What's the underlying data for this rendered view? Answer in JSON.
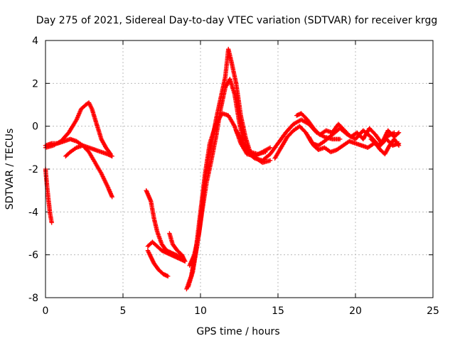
{
  "chart_data": {
    "type": "scatter",
    "title": "Day 275 of 2021, Sidereal Day-to-day VTEC variation (SDTVAR) for receiver krgg",
    "xlabel": "GPS time / hours",
    "ylabel": "SDTVAR / TECUs",
    "xlim": [
      0,
      25
    ],
    "ylim": [
      -8,
      4
    ],
    "xticks": [
      0,
      5,
      10,
      15,
      20,
      25
    ],
    "yticks": [
      -8,
      -6,
      -4,
      -2,
      0,
      2,
      4
    ],
    "grid": true,
    "marker": "plus",
    "series_color": "#ff0000",
    "tracks": [
      {
        "name": "track-1",
        "x": [
          0.0,
          0.5,
          1.0,
          1.5,
          2.0,
          2.3,
          2.6,
          2.8,
          3.0,
          3.3,
          3.6,
          3.9,
          4.2
        ],
        "y": [
          -1.0,
          -0.9,
          -0.7,
          -0.3,
          0.3,
          0.8,
          1.0,
          1.1,
          0.8,
          0.1,
          -0.6,
          -1.0,
          -1.3
        ]
      },
      {
        "name": "track-2",
        "x": [
          0.0,
          0.4,
          0.8,
          1.2,
          1.6,
          2.0,
          2.4,
          2.8,
          3.2,
          3.6,
          4.0,
          4.3
        ],
        "y": [
          -0.9,
          -0.8,
          -0.8,
          -0.7,
          -0.6,
          -0.7,
          -0.9,
          -1.2,
          -1.7,
          -2.2,
          -2.8,
          -3.3
        ]
      },
      {
        "name": "track-3",
        "x": [
          0.0,
          0.1,
          0.2,
          0.3,
          0.4
        ],
        "y": [
          -2.0,
          -2.8,
          -3.5,
          -4.1,
          -4.5
        ]
      },
      {
        "name": "track-4",
        "x": [
          1.3,
          1.6,
          2.0,
          2.4,
          2.8,
          3.2,
          3.6,
          4.0,
          4.3
        ],
        "y": [
          -1.4,
          -1.2,
          -1.0,
          -0.9,
          -1.0,
          -1.1,
          -1.2,
          -1.3,
          -1.4
        ]
      },
      {
        "name": "track-5",
        "x": [
          6.5,
          6.8,
          7.0,
          7.2,
          7.5,
          7.8,
          8.1,
          8.4,
          8.7
        ],
        "y": [
          -3.0,
          -3.5,
          -4.3,
          -4.9,
          -5.5,
          -5.8,
          -5.9,
          -6.0,
          -6.1
        ]
      },
      {
        "name": "track-6",
        "x": [
          6.6,
          6.9,
          7.2,
          7.5,
          7.8,
          8.1,
          8.4,
          8.7,
          9.0
        ],
        "y": [
          -5.6,
          -5.4,
          -5.6,
          -5.8,
          -5.9,
          -6.0,
          -6.1,
          -6.2,
          -6.3
        ]
      },
      {
        "name": "track-7",
        "x": [
          6.6,
          6.8,
          7.0,
          7.3,
          7.6,
          7.9
        ],
        "y": [
          -5.8,
          -6.1,
          -6.4,
          -6.7,
          -6.9,
          -7.0
        ]
      },
      {
        "name": "track-8",
        "x": [
          8.0,
          8.2,
          8.5,
          8.8,
          9.0
        ],
        "y": [
          -5.0,
          -5.5,
          -5.8,
          -6.0,
          -6.3
        ]
      },
      {
        "name": "track-9",
        "x": [
          9.3,
          9.6,
          9.9,
          10.1,
          10.3,
          10.5,
          10.8,
          11.0,
          11.3,
          11.6,
          11.8,
          12.0,
          12.3,
          12.6,
          12.9,
          13.2,
          13.6,
          14.0,
          14.5
        ],
        "y": [
          -6.5,
          -6.0,
          -5.0,
          -3.8,
          -2.5,
          -1.5,
          -0.5,
          0.3,
          1.3,
          2.3,
          3.6,
          3.0,
          2.0,
          0.5,
          -0.5,
          -1.2,
          -1.5,
          -1.7,
          -1.6
        ]
      },
      {
        "name": "track-10",
        "x": [
          9.1,
          9.4,
          9.7,
          10.0,
          10.3,
          10.6,
          11.0,
          11.4,
          11.8,
          12.2,
          12.6,
          13.0,
          13.5,
          14.0,
          14.5
        ],
        "y": [
          -7.6,
          -7.0,
          -5.8,
          -4.0,
          -2.2,
          -0.8,
          0.1,
          0.6,
          0.5,
          0.0,
          -0.8,
          -1.3,
          -1.4,
          -1.2,
          -1.0
        ]
      },
      {
        "name": "track-11",
        "x": [
          9.2,
          9.5,
          9.8,
          10.1,
          10.4,
          10.7,
          11.0,
          11.3,
          11.6,
          11.9,
          12.2,
          12.5,
          12.8,
          13.2,
          13.7,
          14.2
        ],
        "y": [
          -7.5,
          -6.8,
          -5.5,
          -4.0,
          -2.6,
          -1.6,
          -0.5,
          0.8,
          1.8,
          2.2,
          1.5,
          0.2,
          -0.8,
          -1.2,
          -1.3,
          -1.2
        ]
      },
      {
        "name": "track-12",
        "x": [
          12.3,
          12.6,
          13.0,
          13.5,
          14.0,
          14.5,
          15.0,
          15.5,
          16.0,
          16.5,
          17.0,
          17.5,
          18.0,
          18.5,
          19.0
        ],
        "y": [
          -0.2,
          -0.6,
          -1.2,
          -1.5,
          -1.6,
          -1.3,
          -0.8,
          -0.3,
          0.1,
          0.3,
          0.1,
          -0.3,
          -0.5,
          -0.6,
          -0.6
        ]
      },
      {
        "name": "track-13",
        "x": [
          14.8,
          15.2,
          15.6,
          16.0,
          16.4,
          16.8,
          17.2,
          17.6,
          18.0,
          18.5,
          19.0,
          19.5,
          20.0,
          20.5,
          21.0,
          21.5,
          22.0,
          22.5
        ],
        "y": [
          -1.5,
          -1.0,
          -0.5,
          -0.2,
          0.0,
          -0.3,
          -0.8,
          -0.9,
          -0.7,
          -0.4,
          -0.1,
          -0.4,
          -0.6,
          -0.2,
          -0.5,
          -0.9,
          -0.5,
          -0.3
        ]
      },
      {
        "name": "track-14",
        "x": [
          17.0,
          17.3,
          17.6,
          18.0,
          18.4,
          18.8,
          19.2,
          19.6,
          20.0,
          20.4,
          20.8,
          21.2,
          21.6,
          22.0,
          22.4,
          22.8
        ],
        "y": [
          -0.5,
          -0.9,
          -1.1,
          -1.0,
          -1.2,
          -1.1,
          -0.9,
          -0.7,
          -0.8,
          -0.9,
          -1.0,
          -0.8,
          -0.9,
          -0.6,
          -0.9,
          -0.8
        ]
      },
      {
        "name": "track-15",
        "x": [
          16.2,
          16.5,
          16.9,
          17.3,
          17.7,
          18.1,
          18.5,
          18.9,
          19.3,
          19.7,
          20.1,
          20.5,
          20.9,
          21.3,
          21.7,
          22.1,
          22.5,
          22.8
        ],
        "y": [
          0.5,
          0.6,
          0.3,
          -0.1,
          -0.4,
          -0.2,
          -0.3,
          0.1,
          -0.2,
          -0.5,
          -0.3,
          -0.6,
          -0.1,
          -0.4,
          -0.8,
          -0.2,
          -0.5,
          -0.3
        ]
      },
      {
        "name": "track-16",
        "x": [
          21.0,
          21.3,
          21.6,
          21.9,
          22.2,
          22.5,
          22.8
        ],
        "y": [
          -0.6,
          -0.8,
          -1.1,
          -1.3,
          -0.9,
          -0.6,
          -0.9
        ]
      }
    ]
  }
}
